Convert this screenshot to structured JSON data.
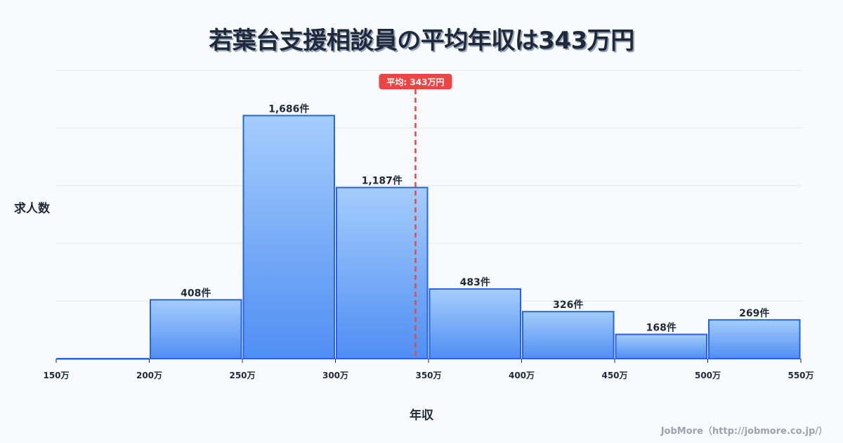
{
  "title": "若葉台支援相談員の平均年収は343万円",
  "y_axis_label": "求人数",
  "x_axis_label": "年収",
  "credit": "JobMore（http://jobmore.co.jp/）",
  "mean_label": "平均: 343万円",
  "colors": {
    "bar_top": "#a5cdfc",
    "bar_bottom": "#4f8ef3",
    "bar_stroke": "#2563eb",
    "mean_line": "#ef4444",
    "grid": "#e2e8f0",
    "text": "#1e293b"
  },
  "chart_data": {
    "type": "bar",
    "title": "若葉台支援相談員の平均年収は343万円",
    "xlabel": "年収",
    "ylabel": "求人数",
    "categories": [
      "150-200万",
      "200-250万",
      "250-300万",
      "300-350万",
      "350-400万",
      "400-450万",
      "450-500万",
      "500-550万"
    ],
    "bin_edges": [
      150,
      200,
      250,
      300,
      350,
      400,
      450,
      500,
      550
    ],
    "x_tick_labels": [
      "150万",
      "200万",
      "250万",
      "300万",
      "350万",
      "400万",
      "450万",
      "500万",
      "550万"
    ],
    "values": [
      0,
      408,
      1686,
      1187,
      483,
      326,
      168,
      269
    ],
    "value_labels": [
      "",
      "408件",
      "1,686件",
      "1,187件",
      "483件",
      "326件",
      "168件",
      "269件"
    ],
    "mean": 343,
    "mean_label": "平均: 343万円",
    "ylim": [
      0,
      2000
    ],
    "grid": true,
    "y_ticks_shown": false
  }
}
